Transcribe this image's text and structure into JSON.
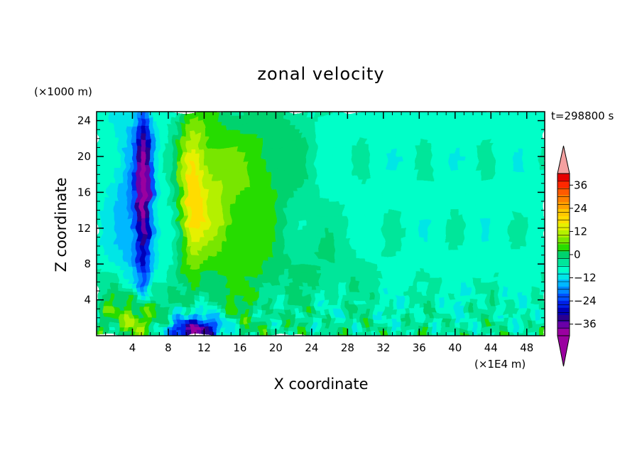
{
  "chart_data": {
    "type": "heatmap",
    "title": "zonal velocity",
    "xlabel": "X coordinate",
    "ylabel": "Z coordinate",
    "x_unit_label": "(×1E4 m)",
    "y_unit_label": "(×1000 m)",
    "time_label": "t=298800 s",
    "xlim": [
      0,
      50
    ],
    "ylim": [
      0,
      25
    ],
    "x_ticks": [
      4,
      8,
      12,
      16,
      20,
      24,
      28,
      32,
      36,
      40,
      44,
      48
    ],
    "y_ticks": [
      4,
      8,
      12,
      16,
      20,
      24
    ],
    "colorbar": {
      "range": [
        -42,
        42
      ],
      "step": 4,
      "labels": [
        "36",
        "24",
        "12",
        "0",
        "-12",
        "-24",
        "-36"
      ],
      "label_values": [
        36,
        24,
        12,
        0,
        -12,
        -24,
        -36
      ],
      "colors": [
        "#9a00a0",
        "#6a00a8",
        "#2a0090",
        "#0000b8",
        "#0020e6",
        "#0050ff",
        "#0088ff",
        "#00b8ff",
        "#00e6e6",
        "#00ffc8",
        "#00e69a",
        "#00d26e",
        "#28dc00",
        "#78e600",
        "#b4f000",
        "#e6f000",
        "#ffdc00",
        "#ffc800",
        "#ffa000",
        "#ff8000",
        "#ff5a00",
        "#ff2800",
        "#e60000"
      ],
      "over_color": "#f4a0a0",
      "under_color": "#9a00a0"
    }
  }
}
